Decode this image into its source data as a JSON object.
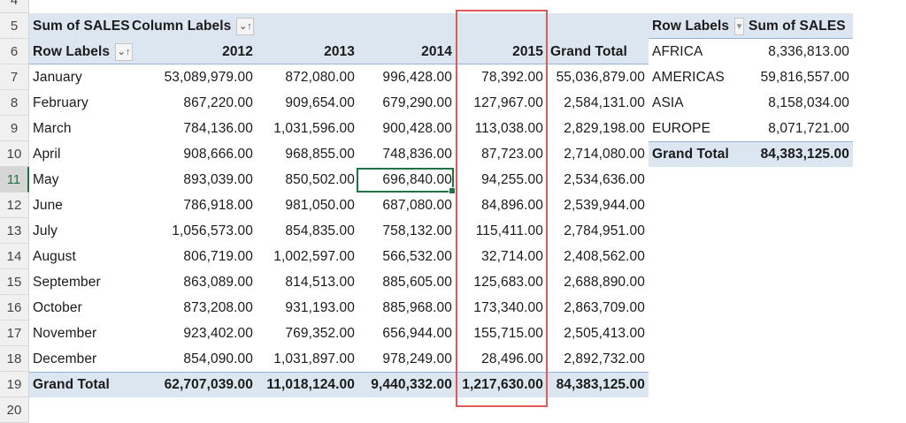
{
  "row_numbers": [
    "4",
    "5",
    "6",
    "7",
    "8",
    "9",
    "10",
    "11",
    "12",
    "13",
    "14",
    "15",
    "16",
    "17",
    "18",
    "19",
    "20"
  ],
  "active_row": "11",
  "pivot1": {
    "value_field": "Sum of SALES",
    "column_labels": "Column Labels",
    "row_labels": "Row Labels",
    "columns": [
      "2012",
      "2013",
      "2014",
      "2015",
      "Grand Total"
    ],
    "rows": [
      {
        "label": "January",
        "values": [
          "53,089,979.00",
          "872,080.00",
          "996,428.00",
          "78,392.00",
          "55,036,879.00"
        ]
      },
      {
        "label": "February",
        "values": [
          "867,220.00",
          "909,654.00",
          "679,290.00",
          "127,967.00",
          "2,584,131.00"
        ]
      },
      {
        "label": "March",
        "values": [
          "784,136.00",
          "1,031,596.00",
          "900,428.00",
          "113,038.00",
          "2,829,198.00"
        ]
      },
      {
        "label": "April",
        "values": [
          "908,666.00",
          "968,855.00",
          "748,836.00",
          "87,723.00",
          "2,714,080.00"
        ]
      },
      {
        "label": "May",
        "values": [
          "893,039.00",
          "850,502.00",
          "696,840.00",
          "94,255.00",
          "2,534,636.00"
        ]
      },
      {
        "label": "June",
        "values": [
          "786,918.00",
          "981,050.00",
          "687,080.00",
          "84,896.00",
          "2,539,944.00"
        ]
      },
      {
        "label": "July",
        "values": [
          "1,056,573.00",
          "854,835.00",
          "758,132.00",
          "115,411.00",
          "2,784,951.00"
        ]
      },
      {
        "label": "August",
        "values": [
          "806,719.00",
          "1,002,597.00",
          "566,532.00",
          "32,714.00",
          "2,408,562.00"
        ]
      },
      {
        "label": "September",
        "values": [
          "863,089.00",
          "814,513.00",
          "885,605.00",
          "125,683.00",
          "2,688,890.00"
        ]
      },
      {
        "label": "October",
        "values": [
          "873,208.00",
          "931,193.00",
          "885,968.00",
          "173,340.00",
          "2,863,709.00"
        ]
      },
      {
        "label": "November",
        "values": [
          "923,402.00",
          "769,352.00",
          "656,944.00",
          "155,715.00",
          "2,505,413.00"
        ]
      },
      {
        "label": "December",
        "values": [
          "854,090.00",
          "1,031,897.00",
          "978,249.00",
          "28,496.00",
          "2,892,732.00"
        ]
      }
    ],
    "grand_total": {
      "label": "Grand Total",
      "values": [
        "62,707,039.00",
        "11,018,124.00",
        "9,440,332.00",
        "1,217,630.00",
        "84,383,125.00"
      ]
    },
    "selected_cell": {
      "row": "May",
      "column": "2014",
      "value": "696,840.00"
    },
    "highlighted_column": "2015"
  },
  "pivot2": {
    "row_labels": "Row Labels",
    "value_field": "Sum of SALES",
    "rows": [
      {
        "label": "AFRICA",
        "value": "8,336,813.00"
      },
      {
        "label": "AMERICAS",
        "value": "59,816,557.00"
      },
      {
        "label": "ASIA",
        "value": "8,158,034.00"
      },
      {
        "label": "EUROPE",
        "value": "8,071,721.00"
      }
    ],
    "grand_total": {
      "label": "Grand Total",
      "value": "84,383,125.00"
    }
  },
  "icons": {
    "sort_filter": "⌄↑",
    "dropdown": "▾"
  },
  "colors": {
    "pivot_header_band": "#dce6f1",
    "highlight_box": "#e05a5a",
    "selection": "#217346"
  }
}
